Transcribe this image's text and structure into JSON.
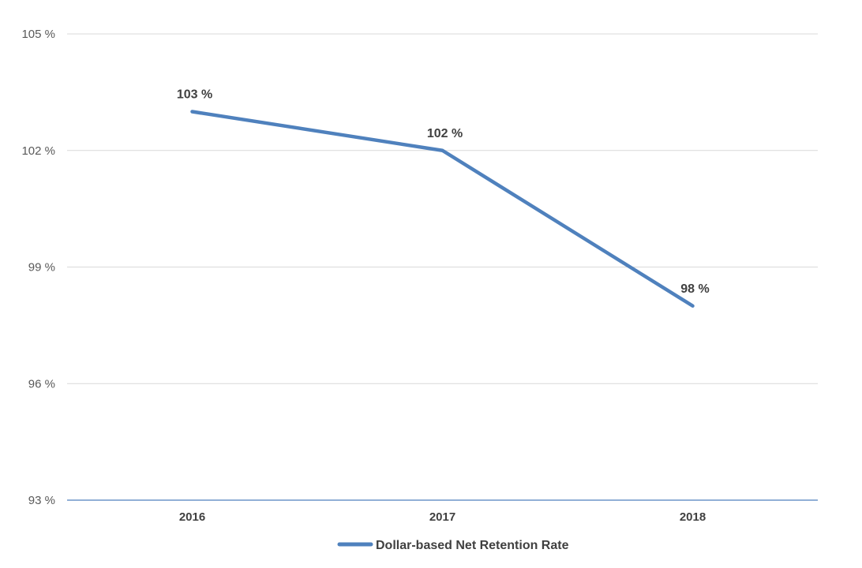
{
  "chart_data": {
    "type": "line",
    "title": "",
    "xlabel": "",
    "ylabel": "",
    "categories": [
      "2016",
      "2017",
      "2018"
    ],
    "series": [
      {
        "name": "Dollar-based Net Retention Rate",
        "values": [
          103,
          102,
          98
        ],
        "data_labels": [
          "103 %",
          "102 %",
          "98 %"
        ],
        "color": "#4f81bd"
      }
    ],
    "ylim": [
      93,
      105
    ],
    "y_ticks": [
      93,
      96,
      99,
      102,
      105
    ],
    "y_tick_labels": [
      "93 %",
      "96 %",
      "99 %",
      "102 %",
      "105 %"
    ],
    "grid": true,
    "legend_position": "bottom",
    "colors": {
      "gridline": "#d9d9d9",
      "axis_line": "#4f81bd",
      "text": "#404040",
      "tick_text": "#595959"
    }
  }
}
